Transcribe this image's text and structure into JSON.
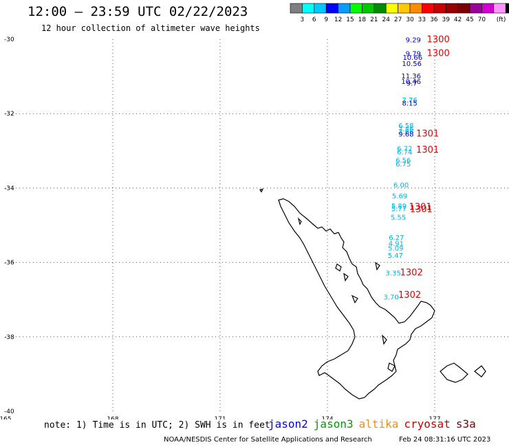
{
  "header": {
    "title": "12:00 — 23:59 UTC 02/22/2023",
    "subtitle": "12 hour collection of altimeter wave heights"
  },
  "color_scale": {
    "colors": [
      "#7f7f7f",
      "#00ffff",
      "#00c8ff",
      "#0000ff",
      "#0a9bff",
      "#00ff00",
      "#00c800",
      "#008c00",
      "#ffff00",
      "#ffc800",
      "#ff8c00",
      "#ff0000",
      "#c80000",
      "#960000",
      "#7d0000",
      "#9b009b",
      "#d200d2",
      "#ff96ff",
      "#000000"
    ],
    "ticks": [
      "3",
      "6",
      "9",
      "12",
      "15",
      "18",
      "21",
      "24",
      "27",
      "30",
      "33",
      "36",
      "39",
      "42",
      "45",
      "70"
    ],
    "unit": "(ft)"
  },
  "axes": {
    "lat_labels": [
      "-30",
      "-32",
      "-34",
      "-36",
      "-38",
      "-40"
    ],
    "lon_labels": [
      "165",
      "168",
      "171",
      "174",
      "177"
    ]
  },
  "measurements": [
    {
      "v": "9.29",
      "lat": -30.08,
      "lon": 176.4,
      "color": "#0000c8"
    },
    {
      "v": "9.79",
      "lat": -30.45,
      "lon": 176.4,
      "color": "#0000c8"
    },
    {
      "v": "10.66",
      "lat": -30.55,
      "lon": 176.38,
      "color": "#0000c8"
    },
    {
      "v": "10.56",
      "lat": -30.72,
      "lon": 176.36,
      "color": "#0000c8"
    },
    {
      "v": "11.36",
      "lat": -31.05,
      "lon": 176.34,
      "color": "#0000c8"
    },
    {
      "v": "10.46",
      "lat": -31.2,
      "lon": 176.34,
      "color": "#0000c8"
    },
    {
      "v": "9.7",
      "lat": -31.25,
      "lon": 176.36,
      "color": "#0000c8"
    },
    {
      "v": "7.76",
      "lat": -31.7,
      "lon": 176.3,
      "color": "#00b4e6"
    },
    {
      "v": "8.15",
      "lat": -31.78,
      "lon": 176.3,
      "color": "#0000c8"
    },
    {
      "v": "6.58",
      "lat": -32.38,
      "lon": 176.2,
      "color": "#00b4e6"
    },
    {
      "v": "7.86",
      "lat": -32.48,
      "lon": 176.2,
      "color": "#00b4e6"
    },
    {
      "v": "7.66",
      "lat": -32.55,
      "lon": 176.2,
      "color": "#00b4e6"
    },
    {
      "v": "9.68",
      "lat": -32.62,
      "lon": 176.2,
      "color": "#0000c8"
    },
    {
      "v": "6.72",
      "lat": -33.0,
      "lon": 176.16,
      "color": "#00b4e6"
    },
    {
      "v": "6.74",
      "lat": -33.1,
      "lon": 176.16,
      "color": "#00b4e6"
    },
    {
      "v": "6.56",
      "lat": -33.32,
      "lon": 176.12,
      "color": "#00b4e6"
    },
    {
      "v": "6.75",
      "lat": -33.42,
      "lon": 176.12,
      "color": "#00b4e6"
    },
    {
      "v": "6.00",
      "lat": -33.98,
      "lon": 176.06,
      "color": "#00b4e6"
    },
    {
      "v": "5.69",
      "lat": -34.28,
      "lon": 176.02,
      "color": "#00b4e6"
    },
    {
      "v": "5.89",
      "lat": -34.55,
      "lon": 176.0,
      "color": "#00b4e6"
    },
    {
      "v": "5.77",
      "lat": -34.62,
      "lon": 176.0,
      "color": "#00b4e6"
    },
    {
      "v": "5.55",
      "lat": -34.85,
      "lon": 175.98,
      "color": "#00b4e6"
    },
    {
      "v": "6.27",
      "lat": -35.4,
      "lon": 175.93,
      "color": "#00b4e6"
    },
    {
      "v": "4.91",
      "lat": -35.55,
      "lon": 175.92,
      "color": "#00b4e6"
    },
    {
      "v": "5.09",
      "lat": -35.68,
      "lon": 175.91,
      "color": "#00b4e6"
    },
    {
      "v": "5.47",
      "lat": -35.88,
      "lon": 175.9,
      "color": "#00b4e6"
    },
    {
      "v": "3.35",
      "lat": -36.35,
      "lon": 175.84,
      "color": "#00b4e6"
    },
    {
      "v": "3.70",
      "lat": -37.0,
      "lon": 175.78,
      "color": "#00b4e6"
    }
  ],
  "passes": [
    {
      "label": "1300",
      "lat": -30.08,
      "lon": 177.1,
      "color": "#e60000"
    },
    {
      "label": "1300",
      "lat": -30.45,
      "lon": 177.1,
      "color": "#e60000"
    },
    {
      "label": "1301",
      "lat": -32.62,
      "lon": 176.8,
      "color": "#e60000"
    },
    {
      "label": "1301",
      "lat": -33.05,
      "lon": 176.8,
      "color": "#e60000"
    },
    {
      "label": "1301",
      "lat": -34.58,
      "lon": 176.6,
      "color": "#e60000"
    },
    {
      "label": "1301",
      "lat": -34.65,
      "lon": 176.62,
      "color": "#e60000"
    },
    {
      "label": "1302",
      "lat": -36.35,
      "lon": 176.35,
      "color": "#e60000"
    },
    {
      "label": "1302",
      "lat": -36.95,
      "lon": 176.3,
      "color": "#e60000"
    }
  ],
  "footer": {
    "note": "note: 1) Time is in UTC; 2) SWH is in feet",
    "satellites": [
      {
        "name": "jason2",
        "color": "#0000ff"
      },
      {
        "name": "jason3",
        "color": "#00a000"
      },
      {
        "name": "altika",
        "color": "#ff8c00"
      },
      {
        "name": "cryosat",
        "color": "#cc0000"
      },
      {
        "name": "s3a",
        "color": "#800000"
      }
    ],
    "credit": "NOAA/NESDIS Center for Satellite Applications and Research",
    "timestamp": "Feb 24 08:31:16 UTC 2023"
  }
}
